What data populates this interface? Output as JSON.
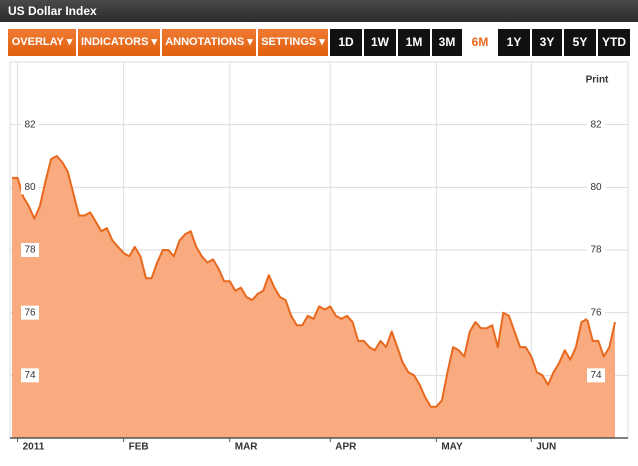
{
  "window_title": "US Dollar Index",
  "menus": [
    "OVERLAY",
    "INDICATORS",
    "ANNOTATIONS",
    "SETTINGS"
  ],
  "ranges": [
    "1D",
    "1W",
    "1M",
    "3M",
    "6M",
    "1Y",
    "3Y",
    "5Y",
    "YTD"
  ],
  "selected_range": "6M",
  "print_label": "Print",
  "chart_data": {
    "type": "area",
    "line_color": "#e8691e",
    "fill_color": "#f9ab7f",
    "grid": true,
    "values": [
      80.3,
      80.3,
      79.7,
      79.4,
      79.0,
      79.4,
      80.2,
      80.9,
      81.0,
      80.8,
      80.5,
      79.8,
      79.1,
      79.1,
      79.2,
      78.9,
      78.6,
      78.7,
      78.3,
      78.1,
      77.9,
      77.8,
      78.1,
      77.8,
      77.1,
      77.1,
      77.6,
      78.0,
      78.0,
      77.8,
      78.3,
      78.5,
      78.6,
      78.1,
      77.8,
      77.6,
      77.7,
      77.4,
      77.0,
      77.0,
      76.7,
      76.8,
      76.5,
      76.4,
      76.6,
      76.7,
      77.2,
      76.8,
      76.5,
      76.4,
      75.9,
      75.6,
      75.6,
      75.9,
      75.8,
      76.2,
      76.1,
      76.2,
      75.9,
      75.8,
      75.9,
      75.7,
      75.1,
      75.1,
      74.9,
      74.8,
      75.1,
      74.9,
      75.4,
      74.9,
      74.4,
      74.1,
      74.0,
      73.7,
      73.3,
      73.0,
      73.0,
      73.2,
      74.1,
      74.9,
      74.8,
      74.6,
      75.4,
      75.7,
      75.5,
      75.5,
      75.6,
      74.9,
      76.0,
      75.9,
      75.4,
      74.9,
      74.9,
      74.6,
      74.1,
      74.0,
      73.7,
      74.1,
      74.4,
      74.8,
      74.5,
      74.9,
      75.7,
      75.8,
      75.1,
      75.1,
      74.6,
      74.9,
      75.7
    ],
    "xticks": [
      {
        "value": 1,
        "label": "2011"
      },
      {
        "value": 20,
        "label": "FEB"
      },
      {
        "value": 39,
        "label": "MAR"
      },
      {
        "value": 57,
        "label": "APR"
      },
      {
        "value": 76,
        "label": "MAY"
      },
      {
        "value": 93,
        "label": "JUN"
      }
    ],
    "ylim": [
      72,
      84
    ],
    "yticks": [
      74,
      76,
      78,
      80,
      82
    ]
  }
}
